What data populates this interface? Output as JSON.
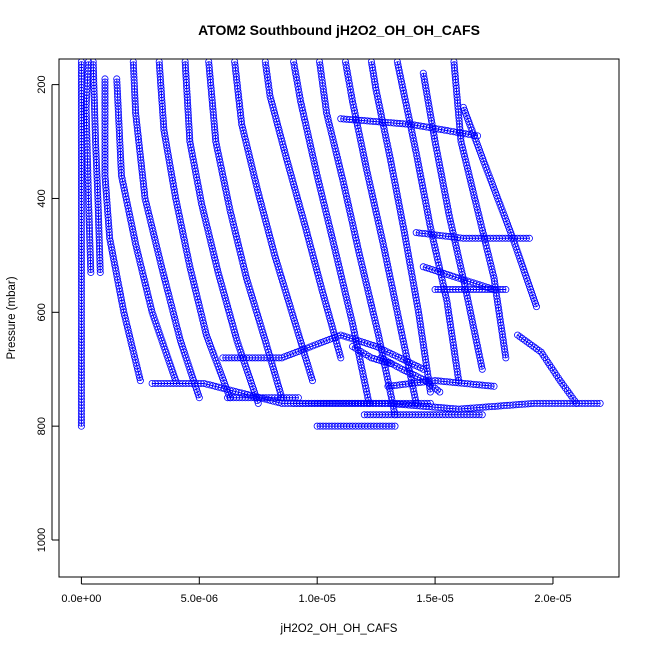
{
  "chart_data": {
    "type": "scatter",
    "title": "ATOM2 Southbound jH2O2_OH_OH_CAFS",
    "xlabel": "jH2O2_OH_OH_CAFS",
    "ylabel": "Pressure (mbar)",
    "xlim": [
      -9.5e-07,
      2.28e-05
    ],
    "ylim": [
      1065,
      155
    ],
    "y_reversed": true,
    "x_ticks": [
      {
        "value": 0,
        "label": "0.0e+00"
      },
      {
        "value": 5e-06,
        "label": "5.0e-06"
      },
      {
        "value": 1e-05,
        "label": "1.0e-05"
      },
      {
        "value": 1.5e-05,
        "label": "1.5e-05"
      },
      {
        "value": 2e-05,
        "label": "2.0e-05"
      }
    ],
    "y_ticks": [
      {
        "value": 200,
        "label": "200"
      },
      {
        "value": 400,
        "label": "400"
      },
      {
        "value": 600,
        "label": "600"
      },
      {
        "value": 800,
        "label": "800"
      },
      {
        "value": 1000,
        "label": "1000"
      }
    ],
    "grid": false,
    "marker": "open-circle",
    "color": "#0000ff",
    "series": [
      {
        "values": [
          [
            0.0,
            800
          ],
          [
            0.0,
            700
          ],
          [
            0.0,
            600
          ],
          [
            0.0,
            500
          ],
          [
            0.0,
            400
          ],
          [
            0.0,
            300
          ],
          [
            0.0,
            200
          ],
          [
            0.0,
            160
          ]
        ]
      },
      {
        "values": [
          [
            4e-07,
            530
          ],
          [
            3e-07,
            400
          ],
          [
            2e-07,
            240
          ],
          [
            3e-07,
            160
          ]
        ]
      },
      {
        "values": [
          [
            8e-07,
            530
          ],
          [
            7e-07,
            400
          ],
          [
            6e-07,
            300
          ],
          [
            5e-07,
            160
          ]
        ]
      },
      {
        "values": [
          [
            2.5e-06,
            720
          ],
          [
            1.8e-06,
            600
          ],
          [
            1.2e-06,
            470
          ],
          [
            1e-06,
            360
          ],
          [
            1e-06,
            190
          ]
        ]
      },
      {
        "values": [
          [
            4e-06,
            720
          ],
          [
            3e-06,
            600
          ],
          [
            2.3e-06,
            480
          ],
          [
            1.7e-06,
            360
          ],
          [
            1.5e-06,
            190
          ]
        ]
      },
      {
        "values": [
          [
            5e-06,
            750
          ],
          [
            4.2e-06,
            650
          ],
          [
            3.4e-06,
            520
          ],
          [
            2.7e-06,
            400
          ],
          [
            2.3e-06,
            250
          ],
          [
            2.2e-06,
            160
          ]
        ]
      },
      {
        "values": [
          [
            6.3e-06,
            750
          ],
          [
            5.3e-06,
            640
          ],
          [
            4.6e-06,
            520
          ],
          [
            4e-06,
            400
          ],
          [
            3.5e-06,
            280
          ],
          [
            3.3e-06,
            160
          ]
        ]
      },
      {
        "values": [
          [
            7.5e-06,
            760
          ],
          [
            6.6e-06,
            650
          ],
          [
            5.8e-06,
            530
          ],
          [
            5.1e-06,
            410
          ],
          [
            4.6e-06,
            300
          ],
          [
            4.4e-06,
            160
          ]
        ]
      },
      {
        "values": [
          [
            8.5e-06,
            750
          ],
          [
            7.8e-06,
            650
          ],
          [
            7e-06,
            540
          ],
          [
            6.3e-06,
            420
          ],
          [
            5.7e-06,
            300
          ],
          [
            5.4e-06,
            160
          ]
        ]
      },
      {
        "values": [
          [
            9.8e-06,
            720
          ],
          [
            9e-06,
            610
          ],
          [
            8.2e-06,
            500
          ],
          [
            7.5e-06,
            390
          ],
          [
            6.8e-06,
            270
          ],
          [
            6.5e-06,
            160
          ]
        ]
      },
      {
        "values": [
          [
            1.1e-05,
            680
          ],
          [
            1.02e-05,
            560
          ],
          [
            9.5e-06,
            450
          ],
          [
            8.7e-06,
            330
          ],
          [
            8e-06,
            220
          ],
          [
            7.8e-06,
            160
          ]
        ]
      },
      {
        "values": [
          [
            1.22e-05,
            760
          ],
          [
            1.15e-05,
            620
          ],
          [
            1.07e-05,
            480
          ],
          [
            1e-05,
            360
          ],
          [
            9.3e-06,
            230
          ],
          [
            9e-06,
            160
          ]
        ]
      },
      {
        "values": [
          [
            1.33e-05,
            780
          ],
          [
            1.26e-05,
            640
          ],
          [
            1.18e-05,
            500
          ],
          [
            1.11e-05,
            370
          ],
          [
            1.04e-05,
            250
          ],
          [
            1.01e-05,
            160
          ]
        ]
      },
      {
        "values": [
          [
            1.42e-05,
            760
          ],
          [
            1.35e-05,
            620
          ],
          [
            1.28e-05,
            480
          ],
          [
            1.21e-05,
            350
          ],
          [
            1.15e-05,
            230
          ],
          [
            1.12e-05,
            160
          ]
        ]
      },
      {
        "values": [
          [
            1.48e-05,
            740
          ],
          [
            1.43e-05,
            600
          ],
          [
            1.37e-05,
            460
          ],
          [
            1.31e-05,
            330
          ],
          [
            1.25e-05,
            210
          ],
          [
            1.23e-05,
            160
          ]
        ]
      },
      {
        "values": [
          [
            1.6e-05,
            720
          ],
          [
            1.55e-05,
            580
          ],
          [
            1.48e-05,
            450
          ],
          [
            1.42e-05,
            320
          ],
          [
            1.36e-05,
            200
          ],
          [
            1.34e-05,
            160
          ]
        ]
      },
      {
        "values": [
          [
            1.7e-05,
            700
          ],
          [
            1.63e-05,
            560
          ],
          [
            1.56e-05,
            430
          ],
          [
            1.5e-05,
            300
          ],
          [
            1.45e-05,
            180
          ]
        ]
      },
      {
        "values": [
          [
            1.8e-05,
            680
          ],
          [
            1.75e-05,
            540
          ],
          [
            1.68e-05,
            420
          ],
          [
            1.61e-05,
            300
          ],
          [
            1.58e-05,
            160
          ]
        ]
      },
      {
        "values": [
          [
            1.93e-05,
            590
          ],
          [
            1.83e-05,
            470
          ],
          [
            1.72e-05,
            350
          ],
          [
            1.62e-05,
            240
          ]
        ]
      },
      {
        "values": [
          [
            2.1e-05,
            760
          ],
          [
            2.03e-05,
            720
          ],
          [
            1.95e-05,
            670
          ],
          [
            1.85e-05,
            640
          ]
        ]
      },
      {
        "values": [
          [
            6e-06,
            680
          ],
          [
            8.5e-06,
            680
          ],
          [
            1.1e-05,
            640
          ],
          [
            1.25e-05,
            660
          ],
          [
            1.45e-05,
            700
          ]
        ]
      },
      {
        "values": [
          [
            3e-06,
            725
          ],
          [
            5.2e-06,
            725
          ],
          [
            8.5e-06,
            760
          ],
          [
            1.2e-05,
            760
          ],
          [
            1.48e-05,
            760
          ]
        ]
      },
      {
        "values": [
          [
            6.2e-06,
            750
          ],
          [
            9.2e-06,
            750
          ]
        ]
      },
      {
        "values": [
          [
            9e-06,
            760
          ],
          [
            1.3e-05,
            760
          ],
          [
            1.6e-05,
            770
          ],
          [
            1.92e-05,
            760
          ],
          [
            2.2e-05,
            760
          ]
        ]
      },
      {
        "values": [
          [
            1.2e-05,
            780
          ],
          [
            1.48e-05,
            780
          ],
          [
            1.7e-05,
            780
          ]
        ]
      },
      {
        "values": [
          [
            1e-05,
            800
          ],
          [
            1.15e-05,
            800
          ],
          [
            1.33e-05,
            800
          ]
        ]
      },
      {
        "values": [
          [
            1.3e-05,
            730
          ],
          [
            1.5e-05,
            720
          ],
          [
            1.75e-05,
            730
          ]
        ]
      },
      {
        "values": [
          [
            1.42e-05,
            460
          ],
          [
            1.62e-05,
            470
          ],
          [
            1.9e-05,
            470
          ]
        ]
      },
      {
        "values": [
          [
            1.5e-05,
            560
          ],
          [
            1.7e-05,
            560
          ],
          [
            1.8e-05,
            560
          ]
        ]
      },
      {
        "values": [
          [
            1.1e-05,
            260
          ],
          [
            1.4e-05,
            270
          ],
          [
            1.68e-05,
            290
          ]
        ]
      },
      {
        "values": [
          [
            1.45e-05,
            520
          ],
          [
            1.6e-05,
            540
          ],
          [
            1.75e-05,
            560
          ]
        ]
      },
      {
        "values": [
          [
            1.27e-05,
            680
          ],
          [
            1.36e-05,
            700
          ],
          [
            1.46e-05,
            720
          ],
          [
            1.52e-05,
            740
          ]
        ]
      },
      {
        "values": [
          [
            1.15e-05,
            660
          ],
          [
            1.23e-05,
            680
          ],
          [
            1.31e-05,
            690
          ]
        ]
      }
    ]
  }
}
